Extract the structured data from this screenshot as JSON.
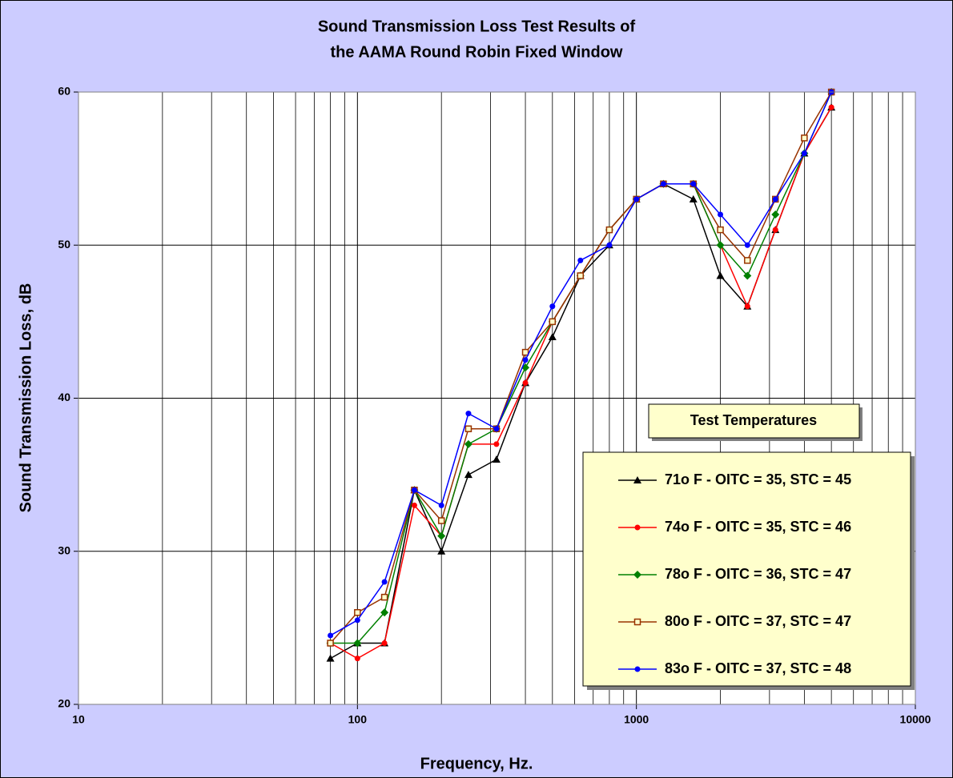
{
  "chart_data": {
    "type": "line",
    "title": [
      "Sound Transmission Loss Test Results of",
      "the AAMA Round Robin Fixed Window"
    ],
    "x_label": "Frequency, Hz.",
    "y_label": "Sound Transmission Loss, dB",
    "legend_title": "Test Temperatures",
    "x": [
      80,
      100,
      125,
      160,
      200,
      250,
      315,
      400,
      500,
      630,
      800,
      1000,
      1250,
      1600,
      2000,
      2500,
      3150,
      4000,
      5000
    ],
    "series": [
      {
        "name": "71o F - OITC = 35, STC = 45",
        "color": "#000000",
        "marker": "triangle",
        "values": [
          23,
          24,
          24,
          34,
          30,
          35,
          36,
          41,
          44,
          48,
          50,
          53,
          54,
          53,
          48,
          46,
          51,
          56,
          59
        ]
      },
      {
        "name": "74o F - OITC = 35, STC = 46",
        "color": "#ff0000",
        "marker": "circle",
        "values": [
          24,
          23,
          24,
          33,
          31,
          37,
          37,
          41,
          45,
          48,
          51,
          53,
          54,
          54,
          50,
          46,
          51,
          56,
          59
        ]
      },
      {
        "name": "78o F - OITC = 36, STC = 47",
        "color": "#008000",
        "marker": "diamond",
        "values": [
          24,
          24,
          26,
          34,
          31,
          37,
          38,
          42,
          45,
          48,
          51,
          53,
          54,
          54,
          50,
          48,
          52,
          56,
          60
        ]
      },
      {
        "name": "80o F - OITC = 37, STC = 47",
        "color": "#993300",
        "marker": "square",
        "values": [
          24,
          26,
          27,
          34,
          32,
          38,
          38,
          43,
          45,
          48,
          51,
          53,
          54,
          54,
          51,
          49,
          53,
          57,
          60
        ]
      },
      {
        "name": "83o F - OITC = 37, STC = 48",
        "color": "#0000ff",
        "marker": "circle",
        "values": [
          24.5,
          25.5,
          28,
          34,
          33,
          39,
          38,
          42.5,
          46,
          49,
          50,
          53,
          54,
          54,
          52,
          50,
          53,
          56,
          60
        ]
      }
    ],
    "xlim": [
      10,
      10000
    ],
    "xticks": [
      10,
      100,
      1000,
      10000
    ],
    "x_log": true,
    "minor_grid": true,
    "ylim": [
      20,
      60
    ],
    "yticks": [
      20,
      30,
      40,
      50,
      60
    ],
    "grid": true
  }
}
